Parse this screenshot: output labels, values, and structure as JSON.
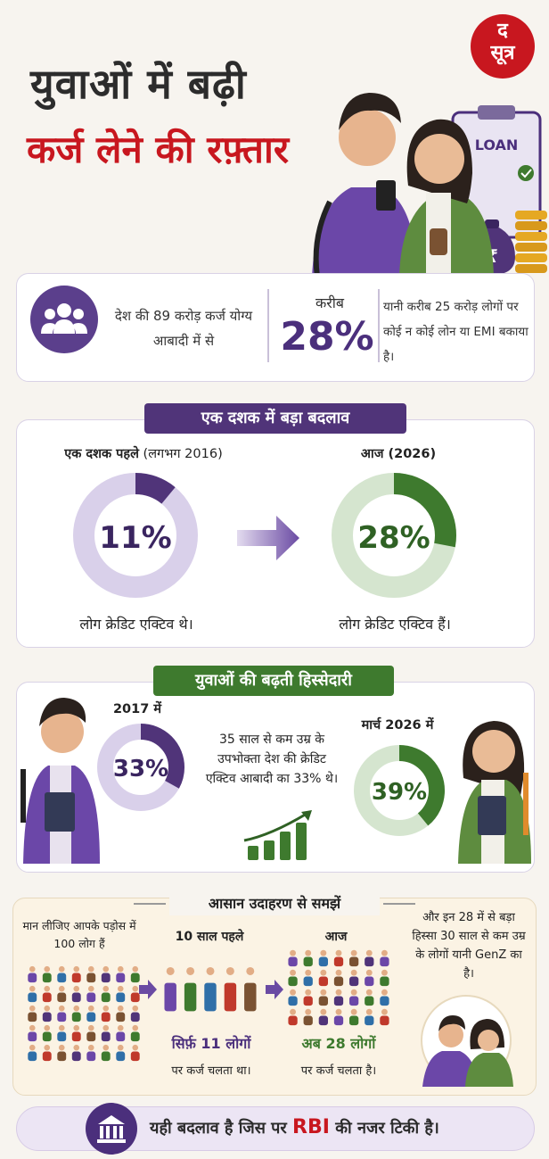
{
  "header": {
    "title_line1": "युवाओं में बढ़ी",
    "title_line2": "कर्ज लेने की रफ़्तार",
    "logo_line1": "द",
    "logo_line2": "सूत्र",
    "loan_label": "LOAN",
    "rupee_symbol": "₹"
  },
  "stat": {
    "left_text": "देश की 89 करोड़ कर्ज योग्य आबादी में से",
    "near_label": "करीब",
    "percent": "28%",
    "right_text": "यानी करीब 25 करोड़ लोगों पर कोई न कोई लोन या EMI बकाया है।"
  },
  "decade": {
    "heading": "एक दशक में बड़ा बदलाव",
    "before_label_bold": "एक दशक पहले",
    "before_label_rest": " (लगभग 2016)",
    "before_percent": "11%",
    "before_value": 0.11,
    "before_caption": "लोग क्रेडिट एक्टिव थे।",
    "now_label": "आज (2026)",
    "now_percent": "28%",
    "now_value": 0.28,
    "now_caption": "लोग क्रेडिट एक्टिव हैं।"
  },
  "youth": {
    "heading": "युवाओं की बढ़ती हिस्सेदारी",
    "year_left": "2017 में",
    "left_percent": "33%",
    "left_value": 0.33,
    "middle_text": "35 साल से कम उम्र के उपभोक्ता देश की क्रेडिट एक्टिव आबादी का 33% थे।",
    "year_right": "मार्च 2026 में",
    "right_percent": "39%",
    "right_value": 0.39
  },
  "example": {
    "heading": "आसान उदाहरण से समझें",
    "intro": "मान लीजिए आपके पड़ोस में 100 लोग हैं",
    "past_label": "10 साल पहले",
    "past_number": "सिर्फ़ 11 लोगों",
    "past_caption": "पर कर्ज चलता था।",
    "now_label": "आज",
    "now_number": "अब 28 लोगों",
    "now_caption": "पर कर्ज चलता है।",
    "right_text": "और इन 28 में से बड़ा हिस्सा 30 साल से कम उम्र के लोगों यानी GenZ का है।"
  },
  "footer": {
    "text_before": "यही बदलाव है जिस पर ",
    "rbi": "RBI",
    "text_after": " की नजर टिकी है।"
  },
  "colors": {
    "purple": "#503479",
    "purple_light": "#d9d0ea",
    "green": "#3e7a2e",
    "green_light": "#d5e5cf",
    "red": "#c8171f"
  }
}
